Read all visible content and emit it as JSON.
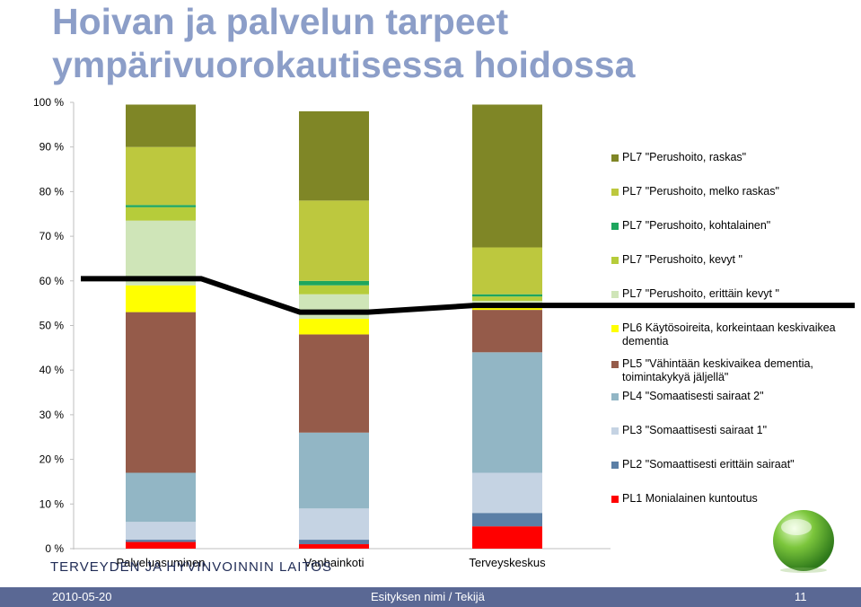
{
  "title": "Hoivan ja palvelun tarpeet ympärivuorokautisessa hoidossa",
  "organization": "TERVEYDEN JA HYVINVOINNIN LAITOS",
  "footer": {
    "date": "2010-05-20",
    "presenter": "Esityksen nimi / Tekijä",
    "page": "11"
  },
  "icons": {
    "globe": "green-globe-icon"
  },
  "chart_data": {
    "type": "bar",
    "stacked": true,
    "ylim": [
      0,
      100
    ],
    "yticks": [
      "0 %",
      "10 %",
      "20 %",
      "30 %",
      "40 %",
      "50 %",
      "60 %",
      "70 %",
      "80 %",
      "90 %",
      "100 %"
    ],
    "categories": [
      "Palveluasuminen",
      "Vanhainkoti",
      "Terveyskeskus"
    ],
    "series": [
      {
        "name": "PL1 Monialainen kuntoutus",
        "color": "#ff0000",
        "values": [
          1.5,
          1.0,
          5.0
        ]
      },
      {
        "name": "PL2 \"Somaattisesti erittäin sairaat\"",
        "color": "#5b7fa6",
        "values": [
          0.5,
          1.0,
          3.0
        ]
      },
      {
        "name": "PL3 \"Somaattisesti sairaat 1\"",
        "color": "#c5d3e3",
        "values": [
          4.0,
          7.0,
          9.0
        ]
      },
      {
        "name": "PL4 \"Somaatisesti sairaat 2\"",
        "color": "#92b6c5",
        "values": [
          11.0,
          17.0,
          27.0
        ]
      },
      {
        "name": "PL5 \"Vähintään keskivaikea dementia, toimintakykyä jäljellä\"",
        "color": "#955b4a",
        "values": [
          36.0,
          22.0,
          9.5
        ]
      },
      {
        "name": "PL6 Käytösoireita, korkeintaan keskivaikea dementia",
        "color": "#ffff00",
        "values": [
          6.0,
          3.5,
          0.5
        ]
      },
      {
        "name": "PL7 \"Perushoito, erittäin kevyt \"",
        "color": "#cfe5b8",
        "values": [
          14.5,
          5.5,
          1.5
        ]
      },
      {
        "name": "PL7 \"Perushoito, kevyt \"",
        "color": "#b6cc3a",
        "values": [
          3.0,
          2.0,
          1.0
        ]
      },
      {
        "name": "PL7 \"Perushoito, kohtalainen\"",
        "color": "#1ea65e",
        "values": [
          0.5,
          1.0,
          0.5
        ]
      },
      {
        "name": "PL7 \"Perushoito, melko raskas\"",
        "color": "#bdc83e",
        "values": [
          13.0,
          18.0,
          10.5
        ]
      },
      {
        "name": "PL7 \"Perushoito, raskas\"",
        "color": "#7f8626",
        "values": [
          9.5,
          20.0,
          32.0
        ]
      }
    ],
    "threshold_line": {
      "color": "#000000",
      "values": [
        60.5,
        53.0,
        54.5
      ]
    }
  }
}
